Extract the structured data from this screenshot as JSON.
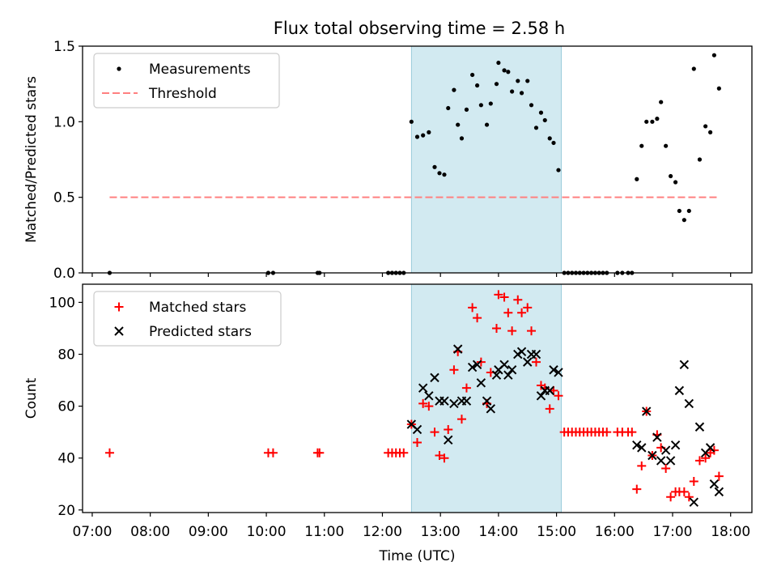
{
  "figure": {
    "title": "Flux total observing time = 2.58 h"
  },
  "chart_data": [
    {
      "type": "scatter",
      "title": "Flux total observing time = 2.58 h",
      "xlabel": "",
      "ylabel": "Matched/Predicted stars",
      "xlim": [
        "06:50",
        "18:22"
      ],
      "ylim": [
        0,
        1.5
      ],
      "yticks": [
        0.0,
        0.5,
        1.0,
        1.5
      ],
      "ytick_labels": [
        "0.0",
        "0.5",
        "1.0",
        "1.5"
      ],
      "xtick_values": [
        "07:00",
        "08:00",
        "09:00",
        "10:00",
        "11:00",
        "12:00",
        "13:00",
        "14:00",
        "15:00",
        "16:00",
        "17:00",
        "18:00"
      ],
      "show_xtick_labels": false,
      "highlight_span": {
        "from": "12:30",
        "to": "15:05",
        "color": "#add8e6"
      },
      "legend": "upper left",
      "legend_entries": [
        "Measurements",
        "Threshold"
      ],
      "series": [
        {
          "name": "Measurements",
          "kind": "dot",
          "color": "#000000",
          "points": [
            [
              "07:18",
              0
            ],
            [
              "10:02",
              0
            ],
            [
              "10:07",
              0
            ],
            [
              "10:53",
              0
            ],
            [
              "10:55",
              0
            ],
            [
              "12:06",
              0
            ],
            [
              "12:10",
              0
            ],
            [
              "12:14",
              0
            ],
            [
              "12:18",
              0
            ],
            [
              "12:22",
              0
            ],
            [
              "12:30",
              1.0
            ],
            [
              "12:36",
              0.9
            ],
            [
              "12:42",
              0.91
            ],
            [
              "12:48",
              0.93
            ],
            [
              "12:54",
              0.7
            ],
            [
              "12:59",
              0.66
            ],
            [
              "13:04",
              0.65
            ],
            [
              "13:08",
              1.09
            ],
            [
              "13:14",
              1.21
            ],
            [
              "13:18",
              0.98
            ],
            [
              "13:22",
              0.89
            ],
            [
              "13:27",
              1.08
            ],
            [
              "13:33",
              1.31
            ],
            [
              "13:38",
              1.24
            ],
            [
              "13:42",
              1.11
            ],
            [
              "13:48",
              0.98
            ],
            [
              "13:52",
              1.12
            ],
            [
              "13:58",
              1.25
            ],
            [
              "14:00",
              1.39
            ],
            [
              "14:06",
              1.34
            ],
            [
              "14:10",
              1.33
            ],
            [
              "14:14",
              1.2
            ],
            [
              "14:20",
              1.27
            ],
            [
              "14:24",
              1.19
            ],
            [
              "14:30",
              1.27
            ],
            [
              "14:34",
              1.11
            ],
            [
              "14:39",
              0.96
            ],
            [
              "14:44",
              1.06
            ],
            [
              "14:48",
              1.01
            ],
            [
              "14:53",
              0.89
            ],
            [
              "14:57",
              0.86
            ],
            [
              "15:02",
              0.68
            ],
            [
              "15:08",
              0
            ],
            [
              "15:12",
              0
            ],
            [
              "15:16",
              0
            ],
            [
              "15:20",
              0
            ],
            [
              "15:24",
              0
            ],
            [
              "15:28",
              0
            ],
            [
              "15:32",
              0
            ],
            [
              "15:36",
              0
            ],
            [
              "15:40",
              0
            ],
            [
              "15:44",
              0
            ],
            [
              "15:48",
              0
            ],
            [
              "15:52",
              0
            ],
            [
              "16:03",
              0
            ],
            [
              "16:08",
              0
            ],
            [
              "16:14",
              0
            ],
            [
              "16:18",
              0
            ],
            [
              "16:23",
              0.62
            ],
            [
              "16:28",
              0.84
            ],
            [
              "16:33",
              1.0
            ],
            [
              "16:39",
              1.0
            ],
            [
              "16:44",
              1.02
            ],
            [
              "16:48",
              1.13
            ],
            [
              "16:53",
              0.84
            ],
            [
              "16:58",
              0.64
            ],
            [
              "17:03",
              0.6
            ],
            [
              "17:07",
              0.41
            ],
            [
              "17:12",
              0.35
            ],
            [
              "17:17",
              0.41
            ],
            [
              "17:22",
              1.35
            ],
            [
              "17:28",
              0.75
            ],
            [
              "17:34",
              0.97
            ],
            [
              "17:39",
              0.93
            ],
            [
              "17:43",
              1.44
            ],
            [
              "17:48",
              1.22
            ]
          ]
        },
        {
          "name": "Threshold",
          "kind": "dashed-line",
          "color": "#ff8080",
          "points": [
            [
              "07:18",
              0.5
            ],
            [
              "17:48",
              0.5
            ]
          ]
        }
      ]
    },
    {
      "type": "scatter",
      "title": "",
      "xlabel": "Time (UTC)",
      "ylabel": "Count",
      "xlim": [
        "06:50",
        "18:22"
      ],
      "ylim": [
        19,
        107
      ],
      "yticks": [
        20,
        40,
        60,
        80,
        100
      ],
      "ytick_labels": [
        "20",
        "40",
        "60",
        "80",
        "100"
      ],
      "xtick_values": [
        "07:00",
        "08:00",
        "09:00",
        "10:00",
        "11:00",
        "12:00",
        "13:00",
        "14:00",
        "15:00",
        "16:00",
        "17:00",
        "18:00"
      ],
      "xtick_labels": [
        "07:00",
        "08:00",
        "09:00",
        "10:00",
        "11:00",
        "12:00",
        "13:00",
        "14:00",
        "15:00",
        "16:00",
        "17:00",
        "18:00"
      ],
      "show_xtick_labels": true,
      "highlight_span": {
        "from": "12:30",
        "to": "15:05",
        "color": "#add8e6"
      },
      "legend": "upper left",
      "legend_entries": [
        "Matched stars",
        "Predicted stars"
      ],
      "series": [
        {
          "name": "Matched stars",
          "kind": "plus",
          "color": "#ff0000",
          "points": [
            [
              "07:18",
              42
            ],
            [
              "10:02",
              42
            ],
            [
              "10:07",
              42
            ],
            [
              "10:53",
              42
            ],
            [
              "10:55",
              42
            ],
            [
              "12:06",
              42
            ],
            [
              "12:10",
              42
            ],
            [
              "12:14",
              42
            ],
            [
              "12:18",
              42
            ],
            [
              "12:22",
              42
            ],
            [
              "12:30",
              53
            ],
            [
              "12:36",
              46
            ],
            [
              "12:42",
              61
            ],
            [
              "12:48",
              60
            ],
            [
              "12:54",
              50
            ],
            [
              "12:59",
              41
            ],
            [
              "13:04",
              40
            ],
            [
              "13:08",
              51
            ],
            [
              "13:14",
              74
            ],
            [
              "13:18",
              81
            ],
            [
              "13:22",
              55
            ],
            [
              "13:27",
              67
            ],
            [
              "13:33",
              98
            ],
            [
              "13:38",
              94
            ],
            [
              "13:42",
              77
            ],
            [
              "13:48",
              61
            ],
            [
              "13:52",
              73
            ],
            [
              "13:58",
              90
            ],
            [
              "14:00",
              103
            ],
            [
              "14:06",
              102
            ],
            [
              "14:10",
              96
            ],
            [
              "14:14",
              89
            ],
            [
              "14:20",
              101
            ],
            [
              "14:24",
              96
            ],
            [
              "14:30",
              98
            ],
            [
              "14:34",
              89
            ],
            [
              "14:39",
              77
            ],
            [
              "14:44",
              68
            ],
            [
              "14:48",
              67
            ],
            [
              "14:53",
              59
            ],
            [
              "14:57",
              66
            ],
            [
              "15:02",
              64
            ],
            [
              "15:08",
              50
            ],
            [
              "15:12",
              50
            ],
            [
              "15:16",
              50
            ],
            [
              "15:20",
              50
            ],
            [
              "15:24",
              50
            ],
            [
              "15:28",
              50
            ],
            [
              "15:32",
              50
            ],
            [
              "15:36",
              50
            ],
            [
              "15:40",
              50
            ],
            [
              "15:44",
              50
            ],
            [
              "15:48",
              50
            ],
            [
              "15:52",
              50
            ],
            [
              "16:03",
              50
            ],
            [
              "16:08",
              50
            ],
            [
              "16:14",
              50
            ],
            [
              "16:18",
              50
            ],
            [
              "16:23",
              28
            ],
            [
              "16:28",
              37
            ],
            [
              "16:33",
              58
            ],
            [
              "16:39",
              41
            ],
            [
              "16:44",
              49
            ],
            [
              "16:48",
              44
            ],
            [
              "16:53",
              36
            ],
            [
              "16:58",
              25
            ],
            [
              "17:03",
              27
            ],
            [
              "17:07",
              27
            ],
            [
              "17:12",
              27
            ],
            [
              "17:17",
              25
            ],
            [
              "17:22",
              31
            ],
            [
              "17:28",
              39
            ],
            [
              "17:34",
              40
            ],
            [
              "17:39",
              42
            ],
            [
              "17:43",
              43
            ],
            [
              "17:48",
              33
            ]
          ]
        },
        {
          "name": "Predicted stars",
          "kind": "x",
          "color": "#000000",
          "points": [
            [
              "12:30",
              53
            ],
            [
              "12:36",
              51
            ],
            [
              "12:42",
              67
            ],
            [
              "12:48",
              64
            ],
            [
              "12:54",
              71
            ],
            [
              "12:59",
              62
            ],
            [
              "13:04",
              62
            ],
            [
              "13:08",
              47
            ],
            [
              "13:14",
              61
            ],
            [
              "13:18",
              82
            ],
            [
              "13:22",
              62
            ],
            [
              "13:27",
              62
            ],
            [
              "13:33",
              75
            ],
            [
              "13:38",
              76
            ],
            [
              "13:42",
              69
            ],
            [
              "13:48",
              62
            ],
            [
              "13:52",
              59
            ],
            [
              "13:58",
              72
            ],
            [
              "14:00",
              74
            ],
            [
              "14:06",
              76
            ],
            [
              "14:10",
              72
            ],
            [
              "14:14",
              74
            ],
            [
              "14:20",
              80
            ],
            [
              "14:24",
              81
            ],
            [
              "14:30",
              77
            ],
            [
              "14:34",
              80
            ],
            [
              "14:39",
              80
            ],
            [
              "14:44",
              64
            ],
            [
              "14:48",
              66
            ],
            [
              "14:53",
              66
            ],
            [
              "14:57",
              74
            ],
            [
              "15:02",
              73
            ],
            [
              "16:23",
              45
            ],
            [
              "16:28",
              44
            ],
            [
              "16:33",
              58
            ],
            [
              "16:39",
              41
            ],
            [
              "16:44",
              48
            ],
            [
              "16:48",
              39
            ],
            [
              "16:53",
              43
            ],
            [
              "16:58",
              39
            ],
            [
              "17:03",
              45
            ],
            [
              "17:07",
              66
            ],
            [
              "17:12",
              76
            ],
            [
              "17:17",
              61
            ],
            [
              "17:22",
              23
            ],
            [
              "17:28",
              52
            ],
            [
              "17:34",
              42
            ],
            [
              "17:39",
              44
            ],
            [
              "17:43",
              30
            ],
            [
              "17:48",
              27
            ]
          ]
        }
      ]
    }
  ]
}
